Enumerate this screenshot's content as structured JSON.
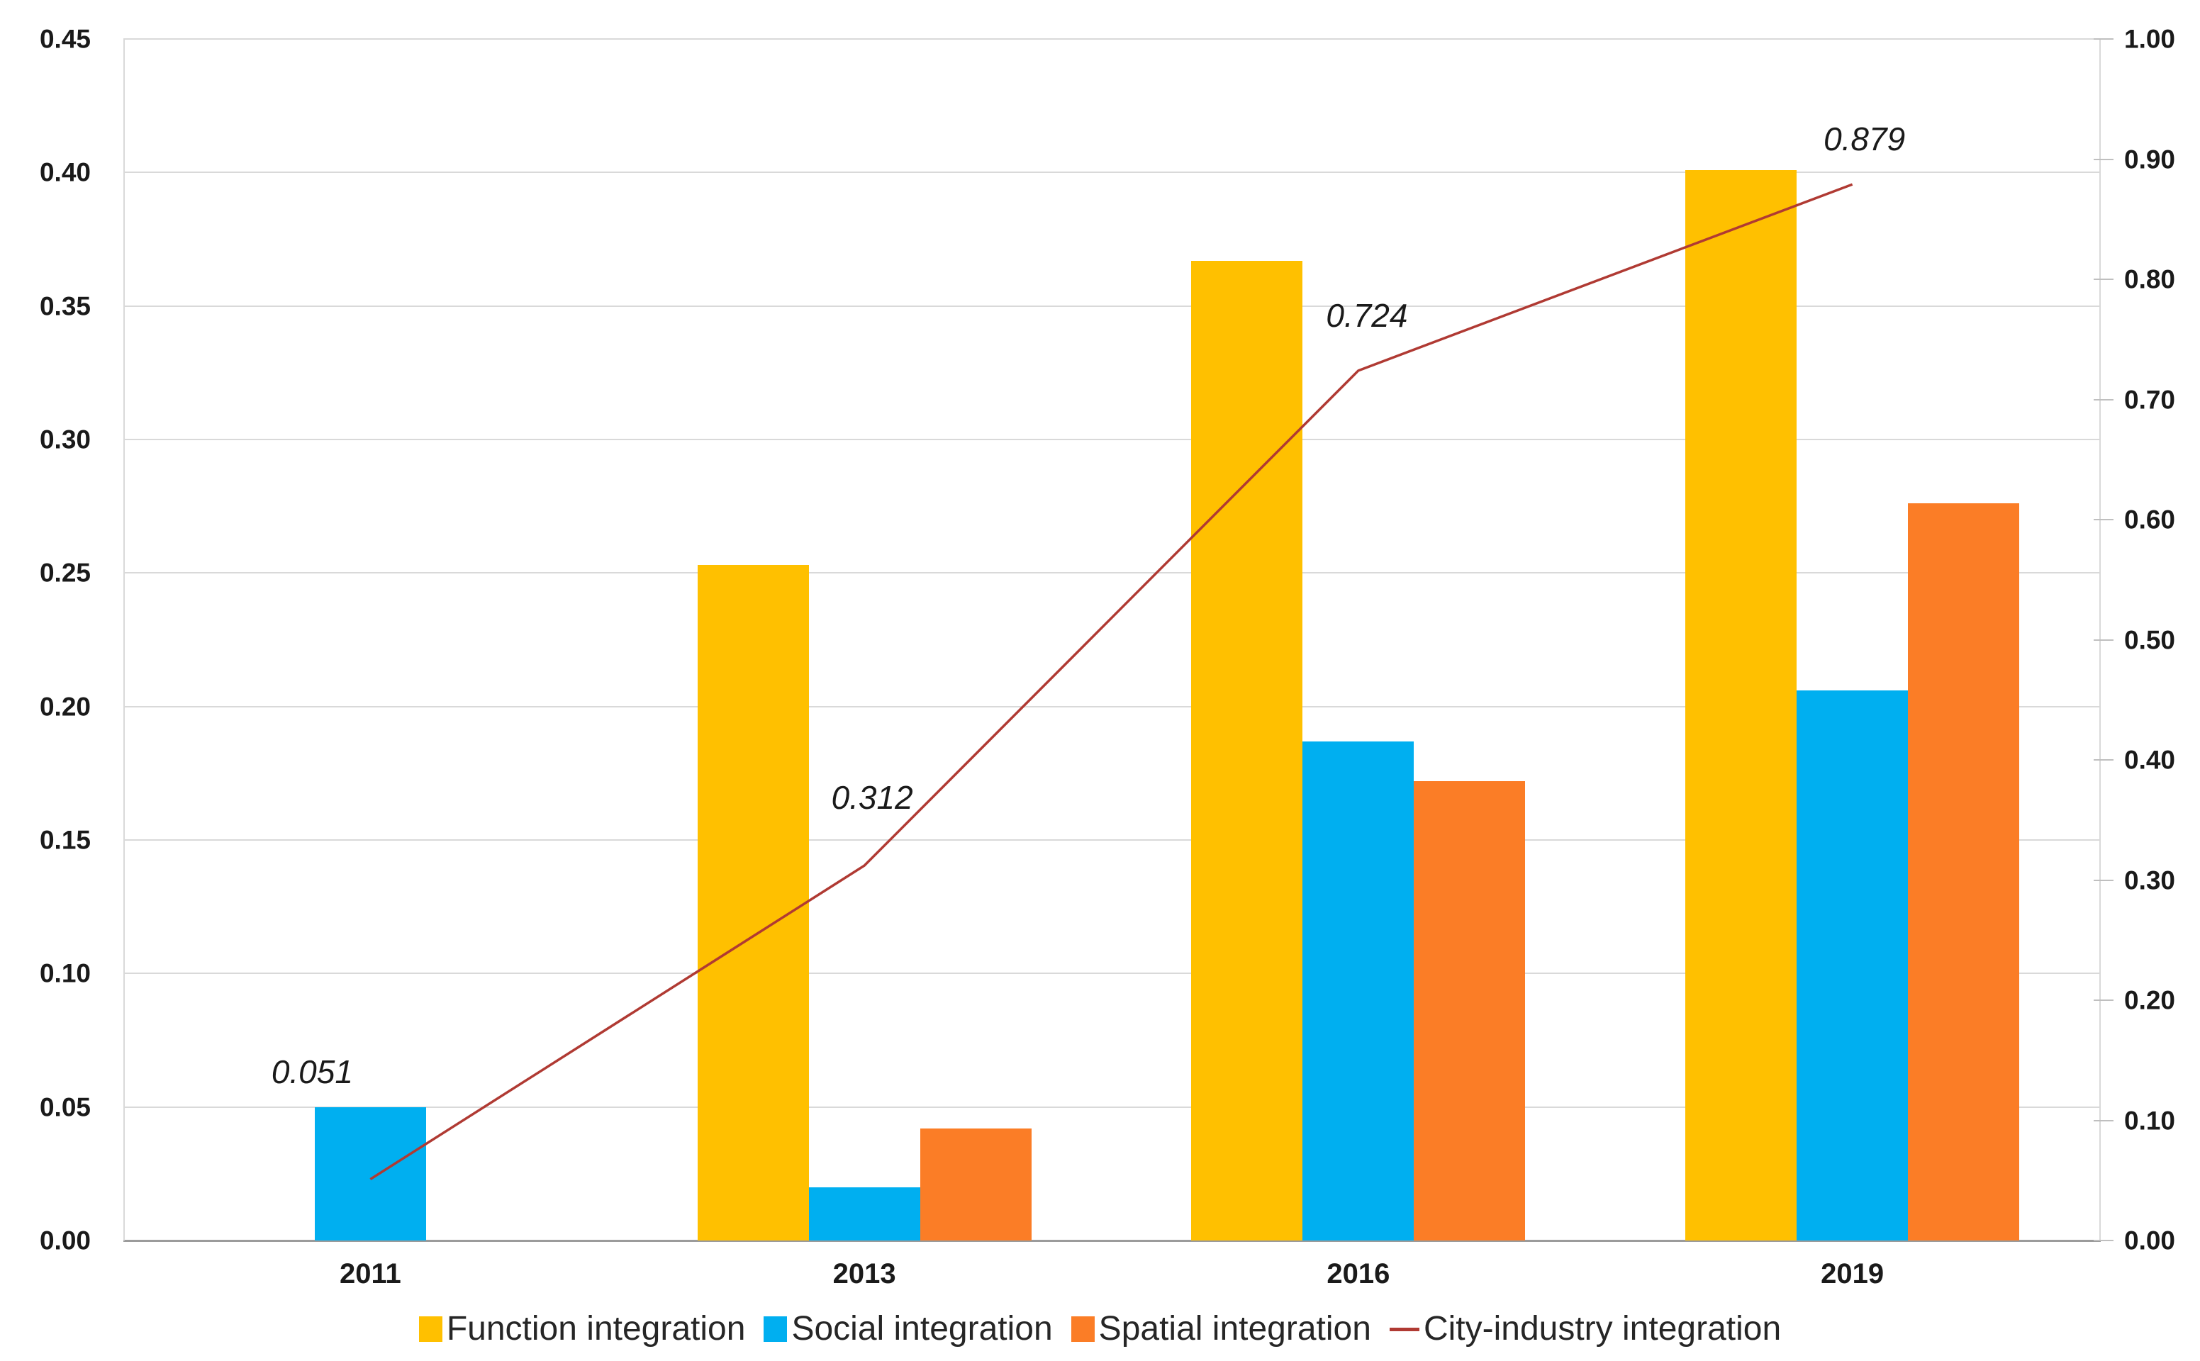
{
  "figure": {
    "background": "#ffffff",
    "text_color": "#1A1A1A",
    "grid_color": "#D9D9D9",
    "axis_line_color": "#9B9B9B",
    "tick_color": "#BFBFBF"
  },
  "chart_data": {
    "type": "combo-bar-line",
    "categories": [
      "2011",
      "2013",
      "2016",
      "2019"
    ],
    "series": [
      {
        "name": "Function integration",
        "type": "bar",
        "axis": "left",
        "color": "#FFC000",
        "values": [
          0,
          0.253,
          0.367,
          0.401
        ]
      },
      {
        "name": "Social integration",
        "type": "bar",
        "axis": "left",
        "color": "#00AFF0",
        "values": [
          0.05,
          0.02,
          0.187,
          0.206
        ]
      },
      {
        "name": "Spatial integration",
        "type": "bar",
        "axis": "left",
        "color": "#FB7D26",
        "values": [
          0,
          0.042,
          0.172,
          0.276
        ]
      },
      {
        "name": "City-industry integration",
        "type": "line",
        "axis": "right",
        "color": "#B03A33",
        "values": [
          0.051,
          0.312,
          0.724,
          0.879
        ],
        "data_labels": [
          "0.051",
          "0.312",
          "0.724",
          "0.879"
        ]
      }
    ],
    "left_axis": {
      "min": 0,
      "max": 0.45,
      "step": 0.05,
      "tick_labels": [
        "0.00",
        "0.05",
        "0.10",
        "0.15",
        "0.20",
        "0.25",
        "0.30",
        "0.35",
        "0.40",
        "0.45"
      ]
    },
    "right_axis": {
      "min": 0,
      "max": 1.0,
      "step": 0.1,
      "tick_labels": [
        "0.00",
        "0.10",
        "0.20",
        "0.30",
        "0.40",
        "0.50",
        "0.60",
        "0.70",
        "0.80",
        "0.90",
        "1.00"
      ]
    },
    "grid": "horizontal",
    "legend_position": "bottom",
    "title": "",
    "xlabel": "",
    "ylabel_left": "",
    "ylabel_right": ""
  }
}
